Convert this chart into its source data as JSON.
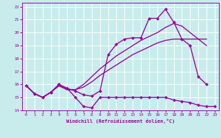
{
  "xlabel": "Windchill (Refroidissement éolien,°C)",
  "bg_color": "#c8ecec",
  "line_color": "#990099",
  "grid_color": "#ffffff",
  "xlim": [
    -0.5,
    23.5
  ],
  "ylim": [
    14,
    22.3
  ],
  "xticks": [
    0,
    1,
    2,
    3,
    4,
    5,
    6,
    7,
    8,
    9,
    10,
    11,
    12,
    13,
    14,
    15,
    16,
    17,
    18,
    19,
    20,
    21,
    22,
    23
  ],
  "yticks": [
    14,
    15,
    16,
    17,
    18,
    19,
    20,
    21,
    22
  ],
  "line1_x": [
    0,
    1,
    2,
    3,
    4,
    5,
    6,
    7,
    8,
    9,
    10,
    11,
    12,
    13,
    14,
    15,
    16,
    17,
    18,
    19,
    20,
    21,
    22,
    23
  ],
  "line1_y": [
    15.9,
    15.3,
    15.0,
    15.4,
    16.0,
    15.7,
    15.0,
    14.3,
    14.2,
    15.0,
    15.0,
    15.0,
    15.0,
    15.0,
    15.0,
    15.0,
    15.0,
    15.0,
    14.8,
    14.7,
    14.6,
    14.4,
    14.3,
    14.3
  ],
  "line2_x": [
    0,
    1,
    2,
    3,
    4,
    5,
    6,
    7,
    8,
    9,
    10,
    11,
    12,
    13,
    14,
    15,
    16,
    17,
    18,
    19,
    20,
    21,
    22
  ],
  "line2_y": [
    15.9,
    15.3,
    15.0,
    15.4,
    15.9,
    15.6,
    15.6,
    15.8,
    16.2,
    16.7,
    17.1,
    17.5,
    17.9,
    18.3,
    18.6,
    18.9,
    19.2,
    19.4,
    19.5,
    19.5,
    19.5,
    19.5,
    19.5
  ],
  "line3_x": [
    0,
    1,
    2,
    3,
    4,
    5,
    6,
    7,
    8,
    9,
    10,
    11,
    12,
    13,
    14,
    15,
    16,
    17,
    18,
    19,
    20,
    21,
    22
  ],
  "line3_y": [
    15.9,
    15.3,
    15.0,
    15.4,
    15.9,
    15.6,
    15.6,
    16.0,
    16.6,
    17.2,
    17.7,
    18.2,
    18.6,
    19.0,
    19.4,
    19.7,
    20.0,
    20.4,
    20.7,
    20.5,
    20.0,
    19.5,
    19.0
  ],
  "line4_x": [
    0,
    1,
    2,
    3,
    4,
    5,
    6,
    7,
    8,
    9,
    10,
    11,
    12,
    13,
    14,
    15,
    16,
    17,
    18,
    19,
    20,
    21,
    22
  ],
  "line4_y": [
    15.9,
    15.3,
    15.0,
    15.4,
    16.0,
    15.7,
    15.5,
    15.2,
    15.1,
    15.5,
    18.3,
    19.1,
    19.5,
    19.6,
    19.6,
    21.1,
    21.1,
    21.8,
    20.8,
    19.5,
    19.0,
    16.6,
    16.0
  ]
}
